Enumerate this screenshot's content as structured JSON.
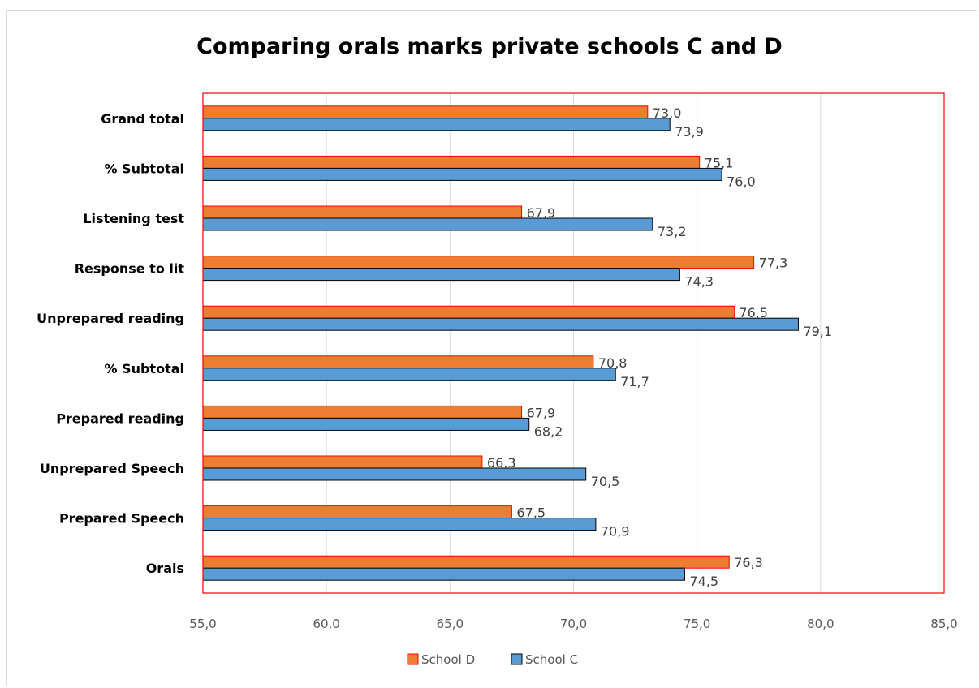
{
  "chart_data": {
    "type": "bar",
    "orientation": "horizontal",
    "title": "Comparing orals marks private schools C and D",
    "categories": [
      "Grand total",
      "% Subtotal",
      "Listening test",
      "Response  to lit",
      "Unprepared reading",
      "% Subtotal ",
      "Prepared reading",
      "Unprepared Speech",
      "Prepared Speech",
      "Orals"
    ],
    "series": [
      {
        "name": "School D",
        "color": "#ED7D31",
        "border": "#FF0000",
        "values": [
          73.0,
          75.1,
          67.9,
          77.3,
          76.5,
          70.8,
          67.9,
          66.3,
          67.5,
          76.3
        ],
        "labels": [
          "73,0",
          "75,1",
          "67,9",
          "77,3",
          "76,5",
          "70,8",
          "67,9",
          "66,3",
          "67,5",
          "76,3"
        ]
      },
      {
        "name": "School C",
        "color": "#5B9BD5",
        "border": "#000000",
        "values": [
          73.9,
          76.0,
          73.2,
          74.3,
          79.1,
          71.7,
          68.2,
          70.5,
          70.9,
          74.5
        ],
        "labels": [
          "73,9",
          "76,0",
          "73,2",
          "74,3",
          "79,1",
          "71,7",
          "68,2",
          "70,5",
          "70,9",
          "74,5"
        ]
      }
    ],
    "xlim": [
      55,
      85
    ],
    "xticks": [
      55,
      60,
      65,
      70,
      75,
      80,
      85
    ],
    "xtick_labels": [
      "55,0",
      "60,0",
      "65,0",
      "70,0",
      "75,0",
      "80,0",
      "85,0"
    ],
    "grid": true,
    "plot_border_color": "#FF0000",
    "legend": {
      "position": "bottom",
      "entries": [
        "School D",
        "School C"
      ]
    }
  }
}
